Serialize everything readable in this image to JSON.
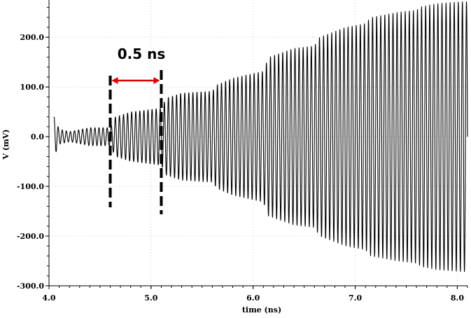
{
  "chart_data": {
    "type": "line",
    "title": "",
    "xlabel": "time (ns)",
    "ylabel": "V (mV)",
    "xlim": [
      4.0,
      8.1
    ],
    "ylim": [
      -300.0,
      275.0
    ],
    "grid": true,
    "x_ticks": [
      {
        "value": 4.0,
        "label": "4.0"
      },
      {
        "value": 5.0,
        "label": "5.0"
      },
      {
        "value": 6.0,
        "label": "6.0"
      },
      {
        "value": 7.0,
        "label": "7.0"
      },
      {
        "value": 8.0,
        "label": "8.0"
      }
    ],
    "y_ticks": [
      {
        "value": 200.0,
        "label": "200.0"
      },
      {
        "value": 100.0,
        "label": "100.0"
      },
      {
        "value": 0.0,
        "label": "0.0"
      },
      {
        "value": -100.0,
        "label": "-100.0"
      },
      {
        "value": -200.0,
        "label": "-200.0"
      },
      {
        "value": -300.0,
        "label": "-300.0"
      }
    ],
    "oscillation_period_ns": 0.04,
    "series": [
      {
        "color": "#000000",
        "envelope": {
          "x": [
            4.05,
            4.1,
            4.2,
            4.4,
            4.6,
            4.65,
            4.8,
            5.0,
            5.1,
            5.15,
            5.3,
            5.6,
            5.65,
            5.8,
            6.1,
            6.15,
            6.4,
            6.6,
            6.65,
            6.9,
            7.1,
            7.15,
            7.4,
            7.6,
            7.65,
            7.8,
            8.05,
            8.1
          ],
          "amplitude_mV": [
            40,
            15,
            10,
            18,
            18,
            40,
            50,
            55,
            58,
            78,
            88,
            92,
            105,
            118,
            132,
            160,
            178,
            183,
            200,
            220,
            228,
            240,
            250,
            255,
            262,
            268,
            272,
            272
          ]
        }
      }
    ],
    "annotations": [
      {
        "text": "0.5 ns",
        "x_start": 4.6,
        "x_end": 5.1,
        "arrow_color": "#e00000"
      }
    ]
  }
}
